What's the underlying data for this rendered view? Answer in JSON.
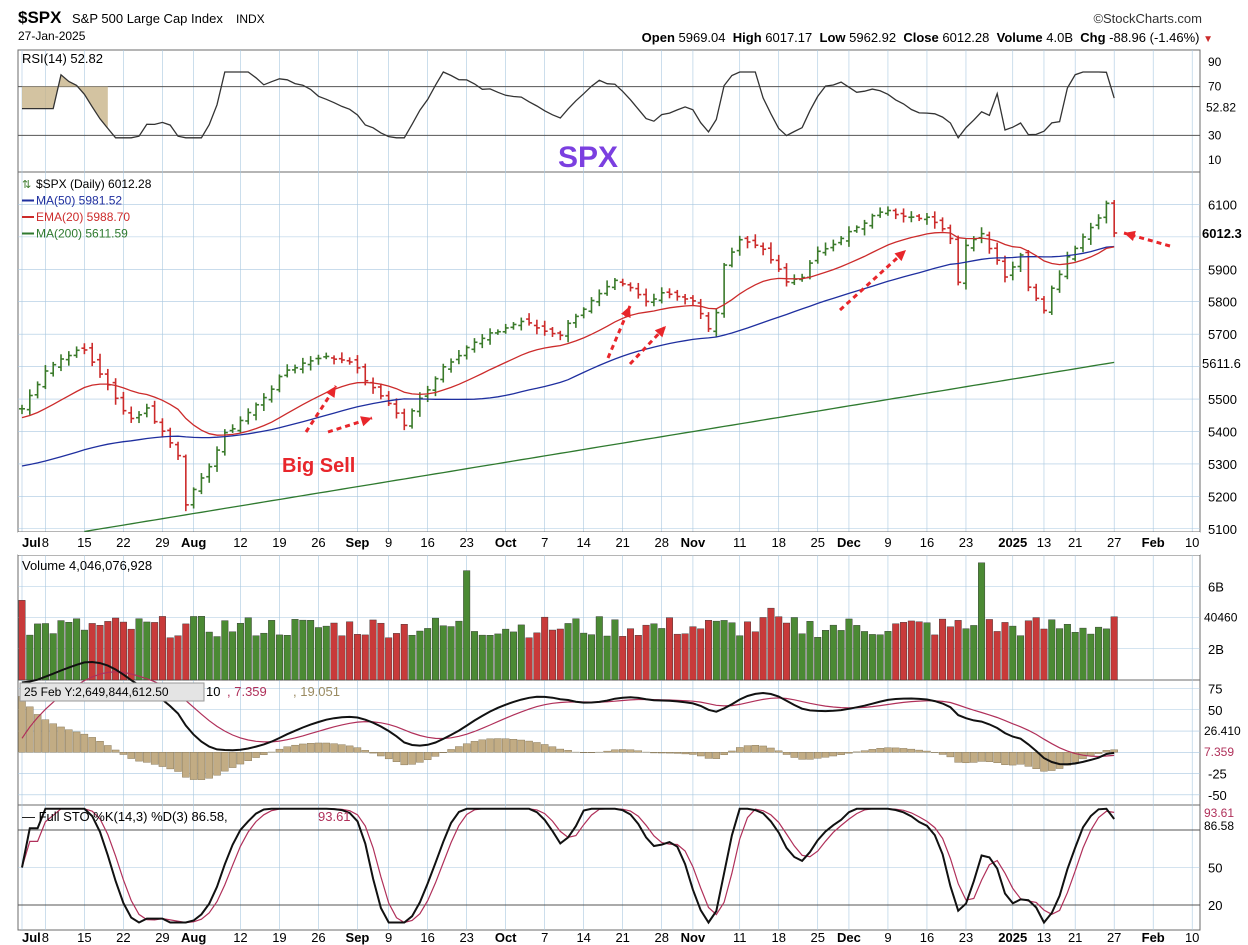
{
  "header": {
    "symbol": "$SPX",
    "name": "S&P 500 Large Cap Index",
    "exchange": "INDX",
    "date": "27-Jan-2025",
    "brand": "©StockCharts.com",
    "stats": [
      {
        "label": "Open",
        "value": "5969.04"
      },
      {
        "label": "High",
        "value": "6017.17"
      },
      {
        "label": "Low",
        "value": "5962.92"
      },
      {
        "label": "Close",
        "value": "6012.28"
      },
      {
        "label": "Volume",
        "value": "4.0B"
      },
      {
        "label": "Chg",
        "value": "-88.96 (-1.46%)"
      }
    ],
    "down_arrow": "▼"
  },
  "colors": {
    "up": "#3a7a2a",
    "down": "#cc2b2b",
    "ma50": "#1f2f9f",
    "ema20": "#cc2b2b",
    "ma200": "#2f7a2f",
    "annotation": "#e8262b",
    "title": "#7b3fe0",
    "grid": "#a9c8e0"
  },
  "chart_data": [
    {
      "type": "line",
      "panel": "RSI",
      "legend": "RSI(14) 52.82",
      "ylim": [
        0,
        100
      ],
      "ticks": [
        "90",
        "70",
        "30",
        "10"
      ],
      "last_label": "52.82",
      "levels": [
        70,
        30
      ]
    },
    {
      "type": "candlestick",
      "panel": "Price",
      "title": "SPX",
      "legend": [
        {
          "name": "$SPX (Daily) 6012.28"
        },
        {
          "name": "MA(50) 5981.52"
        },
        {
          "name": "EMA(20) 5988.70"
        },
        {
          "name": "MA(200) 5611.59"
        }
      ],
      "ylim": [
        5090,
        6200
      ],
      "y_ticks": [
        "6100",
        "5900",
        "5800",
        "5700",
        "5500",
        "5400",
        "5300",
        "5200",
        "5100"
      ],
      "right_labels": [
        "6012.3",
        "5611.6"
      ],
      "anchors": [
        [
          0,
          5470
        ],
        [
          3,
          5590
        ],
        [
          6,
          5640
        ],
        [
          8,
          5650
        ],
        [
          10,
          5580
        ],
        [
          12,
          5500
        ],
        [
          14,
          5440
        ],
        [
          16,
          5470
        ],
        [
          18,
          5400
        ],
        [
          20,
          5330
        ],
        [
          21,
          5180
        ],
        [
          23,
          5250
        ],
        [
          26,
          5390
        ],
        [
          30,
          5480
        ],
        [
          34,
          5590
        ],
        [
          38,
          5630
        ],
        [
          42,
          5620
        ],
        [
          45,
          5530
        ],
        [
          47,
          5490
        ],
        [
          49,
          5420
        ],
        [
          51,
          5500
        ],
        [
          54,
          5600
        ],
        [
          57,
          5660
        ],
        [
          61,
          5710
        ],
        [
          64,
          5740
        ],
        [
          67,
          5710
        ],
        [
          69,
          5700
        ],
        [
          71,
          5760
        ],
        [
          74,
          5820
        ],
        [
          76,
          5860
        ],
        [
          78,
          5840
        ],
        [
          80,
          5800
        ],
        [
          82,
          5830
        ],
        [
          84,
          5820
        ],
        [
          86,
          5800
        ],
        [
          88,
          5720
        ],
        [
          89,
          5760
        ],
        [
          90,
          5920
        ],
        [
          92,
          5990
        ],
        [
          94,
          5980
        ],
        [
          96,
          5930
        ],
        [
          98,
          5860
        ],
        [
          100,
          5880
        ],
        [
          102,
          5950
        ],
        [
          105,
          6000
        ],
        [
          108,
          6040
        ],
        [
          110,
          6080
        ],
        [
          113,
          6070
        ],
        [
          116,
          6060
        ],
        [
          119,
          6000
        ],
        [
          120,
          5860
        ],
        [
          121,
          5980
        ],
        [
          123,
          6010
        ],
        [
          125,
          5930
        ],
        [
          126,
          5880
        ],
        [
          128,
          5940
        ],
        [
          129,
          5850
        ],
        [
          131,
          5780
        ],
        [
          132,
          5840
        ],
        [
          134,
          5940
        ],
        [
          137,
          6030
        ],
        [
          139,
          6100
        ],
        [
          140,
          6012
        ]
      ],
      "x_ticks": [
        {
          "label": "Jul",
          "i": 0
        },
        {
          "label": "8",
          "i": 3
        },
        {
          "label": "15",
          "i": 8
        },
        {
          "label": "22",
          "i": 13
        },
        {
          "label": "29",
          "i": 18
        },
        {
          "label": "Aug",
          "i": 22
        },
        {
          "label": "12",
          "i": 28
        },
        {
          "label": "19",
          "i": 33
        },
        {
          "label": "26",
          "i": 38
        },
        {
          "label": "Sep",
          "i": 43
        },
        {
          "label": "9",
          "i": 47
        },
        {
          "label": "16",
          "i": 52
        },
        {
          "label": "23",
          "i": 57
        },
        {
          "label": "Oct",
          "i": 62
        },
        {
          "label": "7",
          "i": 67
        },
        {
          "label": "14",
          "i": 72
        },
        {
          "label": "21",
          "i": 77
        },
        {
          "label": "28",
          "i": 82
        },
        {
          "label": "Nov",
          "i": 86
        },
        {
          "label": "11",
          "i": 92
        },
        {
          "label": "18",
          "i": 97
        },
        {
          "label": "25",
          "i": 102
        },
        {
          "label": "Dec",
          "i": 106
        },
        {
          "label": "9",
          "i": 111
        },
        {
          "label": "16",
          "i": 116
        },
        {
          "label": "23",
          "i": 121
        },
        {
          "label": "2025",
          "i": 127
        },
        {
          "label": "13",
          "i": 131
        },
        {
          "label": "21",
          "i": 135
        },
        {
          "label": "27",
          "i": 140
        },
        {
          "label": "Feb",
          "i": 145
        },
        {
          "label": "10",
          "i": 150
        }
      ]
    },
    {
      "type": "bar",
      "panel": "Volume",
      "legend": "Volume 4,046,076,928",
      "ylim": [
        0,
        8
      ],
      "ticks": [
        "6B",
        "2B"
      ],
      "last_label": "40460"
    },
    {
      "type": "line",
      "panel": "MACD",
      "legend_tooltip": "25 Feb Y:2,649,844,612.50",
      "legend_values": [
        "10",
        "7.359",
        "19.051"
      ],
      "ylim": [
        -62,
        85
      ],
      "ticks": [
        "75",
        "50",
        "-25",
        "-50"
      ],
      "last_labels": [
        "26.410",
        "7.359"
      ]
    },
    {
      "type": "line",
      "panel": "Full STO",
      "legend": "Full STO %K(14,3) %D(3) 86.58,",
      "legend_value": "93.61",
      "ylim": [
        0,
        100
      ],
      "ticks": [
        "50",
        "20"
      ],
      "last_labels": [
        "93.61",
        "86.58"
      ]
    }
  ],
  "annotations": {
    "big_sell": "Big Sell"
  }
}
